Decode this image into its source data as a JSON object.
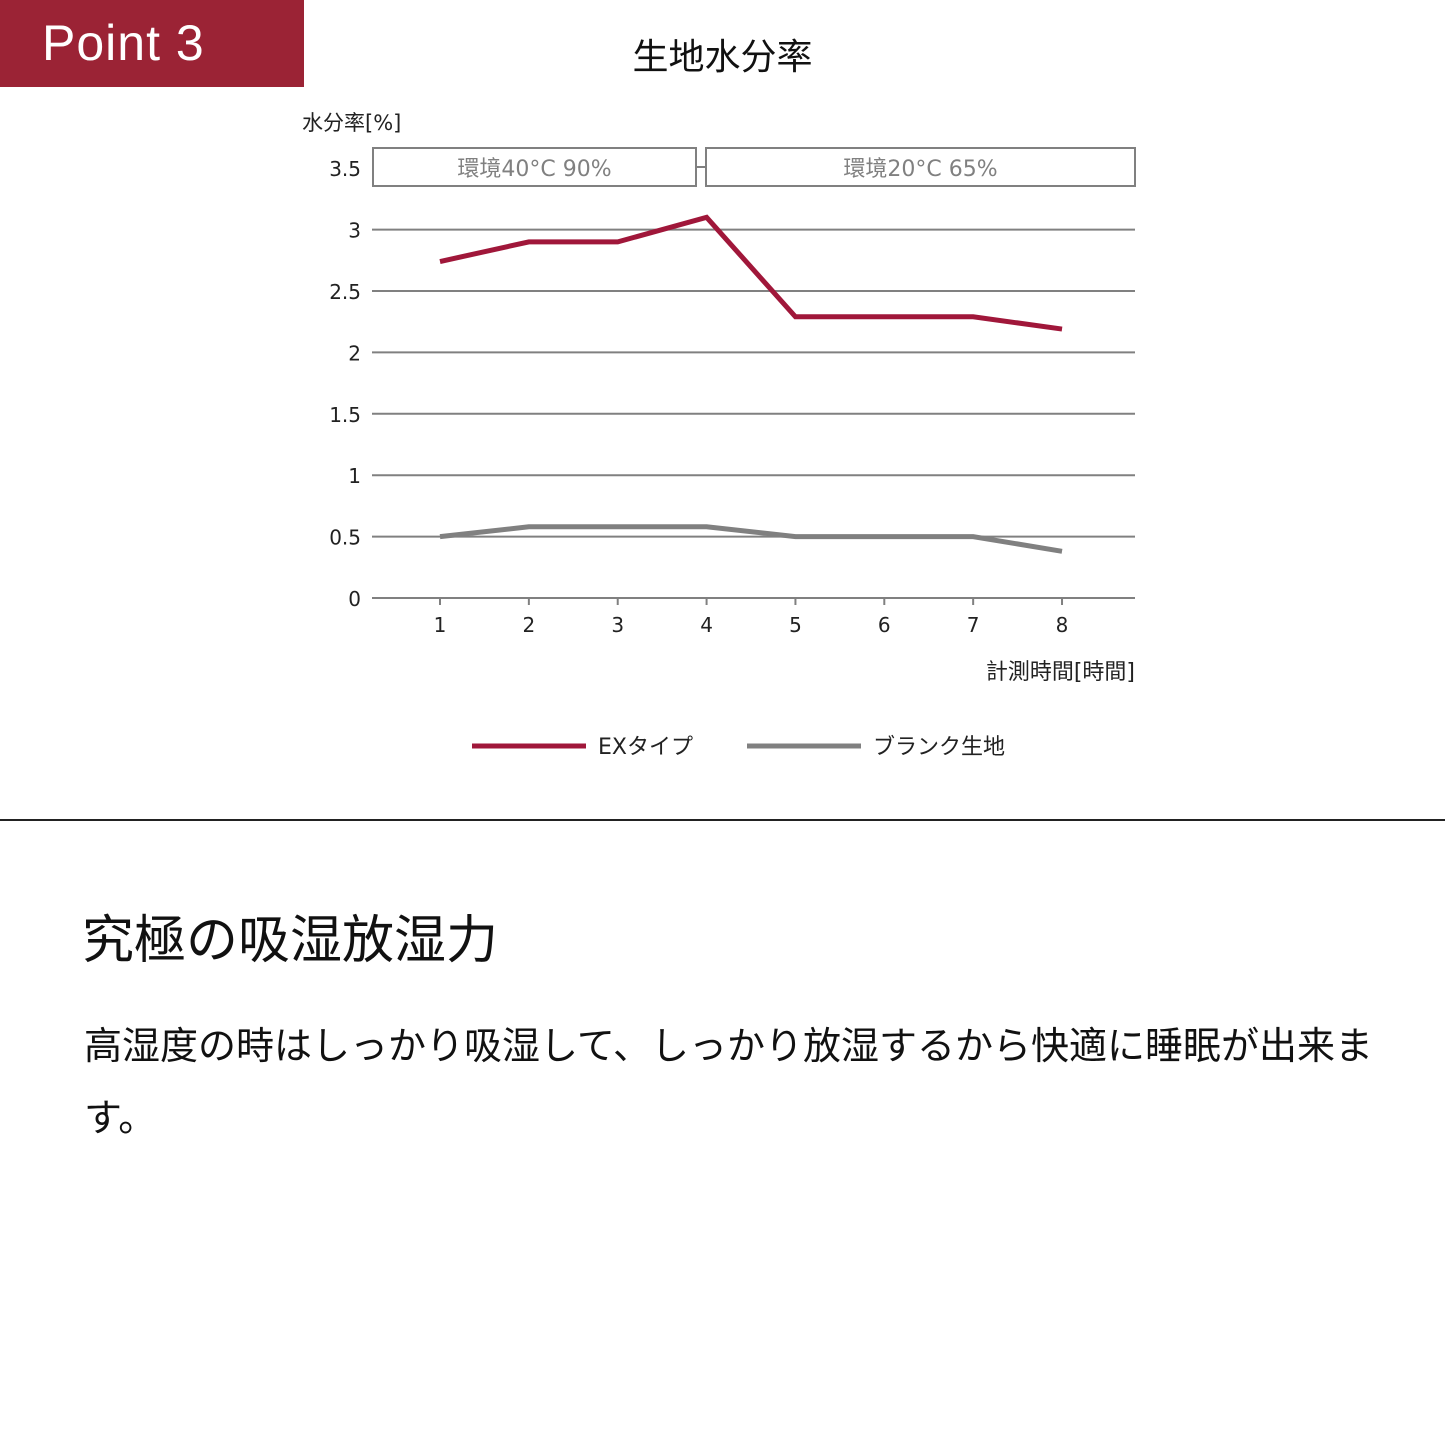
{
  "badge": "Point 3",
  "chart_data": {
    "type": "line",
    "title": "生地水分率",
    "ylabel": "水分率[%]",
    "xlabel": "計測時間[時間]",
    "x": [
      1,
      2,
      3,
      4,
      5,
      6,
      7,
      8
    ],
    "ylim": [
      0,
      3.5
    ],
    "yticks": [
      "0",
      "0.5",
      "1",
      "1.5",
      "2",
      "2.5",
      "3",
      "3.5"
    ],
    "grid": true,
    "legend": "bottom",
    "annotations": [
      {
        "label": "環境40°C 90%",
        "x_range": [
          1,
          4
        ]
      },
      {
        "label": "環境20°C 65%",
        "x_range": [
          4,
          8
        ]
      }
    ],
    "series": [
      {
        "name": "EXタイプ",
        "color": "#a0173a",
        "values": [
          2.74,
          2.9,
          2.9,
          3.1,
          2.29,
          2.29,
          2.29,
          2.19
        ]
      },
      {
        "name": "ブランク生地",
        "color": "#808080",
        "values": [
          0.5,
          0.58,
          0.58,
          0.58,
          0.5,
          0.5,
          0.5,
          0.38
        ]
      }
    ]
  },
  "heading": "究極の吸湿放湿力",
  "body": "高湿度の時はしっかり吸湿して、しっかり放湿するから快適に睡眠が出来ます。"
}
